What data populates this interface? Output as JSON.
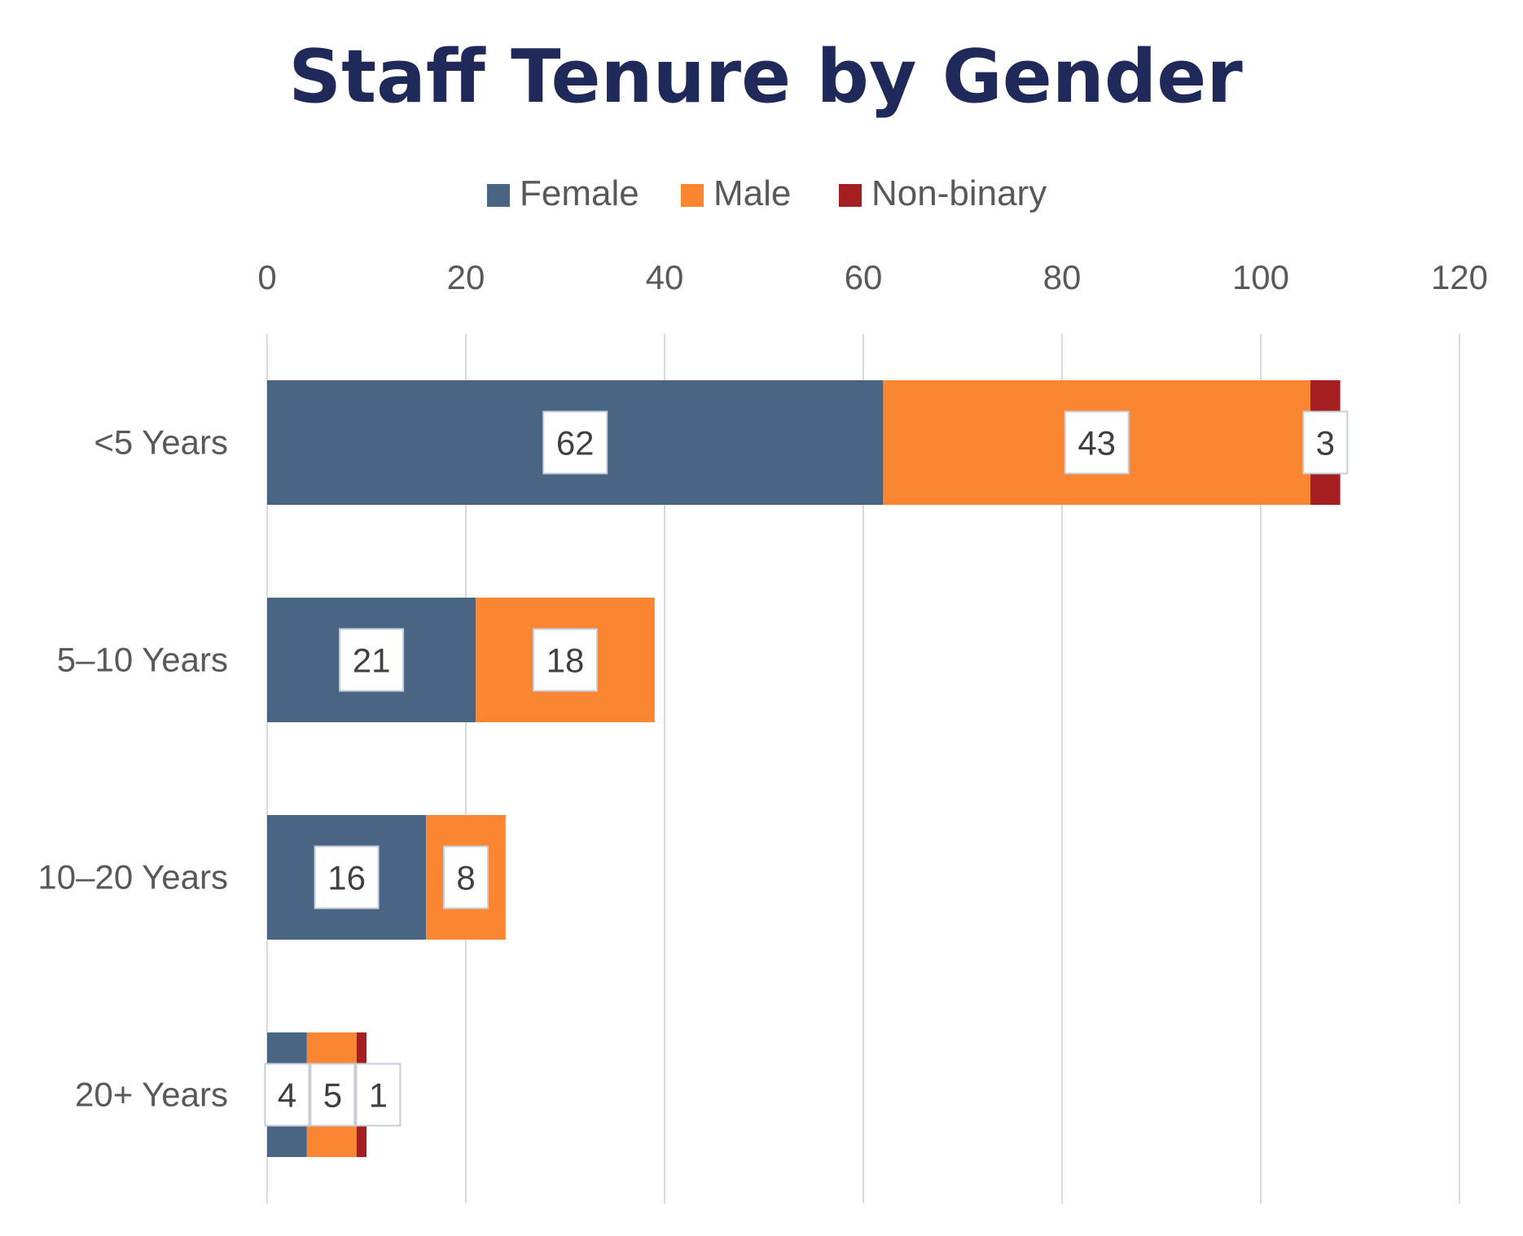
{
  "colors": {
    "title": "#1f2a5a",
    "axis_text": "#595959",
    "grid": "#d9d9d9",
    "label_text": "#404040",
    "label_border": "#c5cfdc",
    "label_bg": "#ffffff"
  },
  "chart_data": {
    "type": "bar",
    "orientation": "horizontal",
    "stacked": true,
    "title": "Staff Tenure by Gender",
    "xlabel": "",
    "ylabel": "",
    "categories": [
      "<5 Years",
      "5–10 Years",
      "10–20 Years",
      "20+ Years"
    ],
    "series": [
      {
        "name": "Female",
        "color": "#4a6483",
        "values": [
          62,
          21,
          16,
          4
        ]
      },
      {
        "name": "Male",
        "color": "#fb8632",
        "values": [
          43,
          18,
          8,
          5
        ]
      },
      {
        "name": "Non-binary",
        "color": "#a51e22",
        "values": [
          3,
          0,
          0,
          1
        ]
      }
    ],
    "xlim": [
      0,
      120
    ],
    "xticks": [
      0,
      20,
      40,
      60,
      80,
      100,
      120
    ],
    "x_axis_position": "top",
    "grid": true,
    "legend": {
      "position": "top-center"
    },
    "data_labels": true
  }
}
